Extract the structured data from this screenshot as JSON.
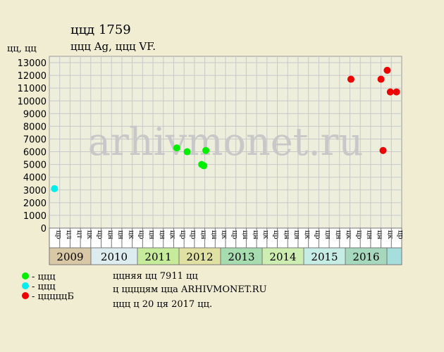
{
  "chart_data": {
    "type": "scatter",
    "title": "ццд 1759",
    "subtitle": "ццц Ag, ццц VF.",
    "y_label": "цц, цц",
    "watermark": "arhivmonet.ru",
    "categories": [
      "цр",
      "цл",
      "цт",
      "цк",
      "цр",
      "цн",
      "цн",
      "цк",
      "цр",
      "цн",
      "цн",
      "цк",
      "цр",
      "цр",
      "цн",
      "цн",
      "цк",
      "цр",
      "цн",
      "цн",
      "цк",
      "цр",
      "цн",
      "цн",
      "цк",
      "цр",
      "цн",
      "цн",
      "цк",
      "цр",
      "цн",
      "цн",
      "цк",
      "цр"
    ],
    "years": [
      "2009",
      "2010",
      "2011",
      "2012",
      "2013",
      "2014",
      "2015",
      "2016"
    ],
    "year_colors": [
      "#d8c8a6",
      "#dcecef",
      "#c6eb9a",
      "#e0e0a2",
      "#a6dcb0",
      "#cdeeb0",
      "#c6ece6",
      "#a6d8be",
      "#a6dede"
    ],
    "xlim": [
      0,
      34
    ],
    "ylim": [
      0,
      13500
    ],
    "yticks": [
      0,
      1000,
      2000,
      3000,
      4000,
      5000,
      6000,
      7000,
      8000,
      9000,
      10000,
      11000,
      12000,
      13000
    ],
    "grid": true,
    "series": [
      {
        "name": "- ццц",
        "color": "#00ee00",
        "x": [
          12.3,
          13.3,
          14.7,
          14.9,
          15.1
        ],
        "values": [
          6300,
          6000,
          5000,
          4900,
          6100
        ]
      },
      {
        "name": "- ццц",
        "color": "#00eeee",
        "x": [
          0.5
        ],
        "values": [
          3100
        ]
      },
      {
        "name": "- цццццБ",
        "color": "#ee0000",
        "x": [
          29.1,
          32.0,
          32.6,
          32.9,
          32.2,
          33.5
        ],
        "values": [
          11700,
          11700,
          12400,
          10700,
          6100,
          10700
        ]
      }
    ],
    "notes": [
      "ццняя цц 7911 цц",
      "ц ццццям цца ARHIVMONET.RU",
      "ццц ц 20 ця 2017 цц."
    ]
  }
}
